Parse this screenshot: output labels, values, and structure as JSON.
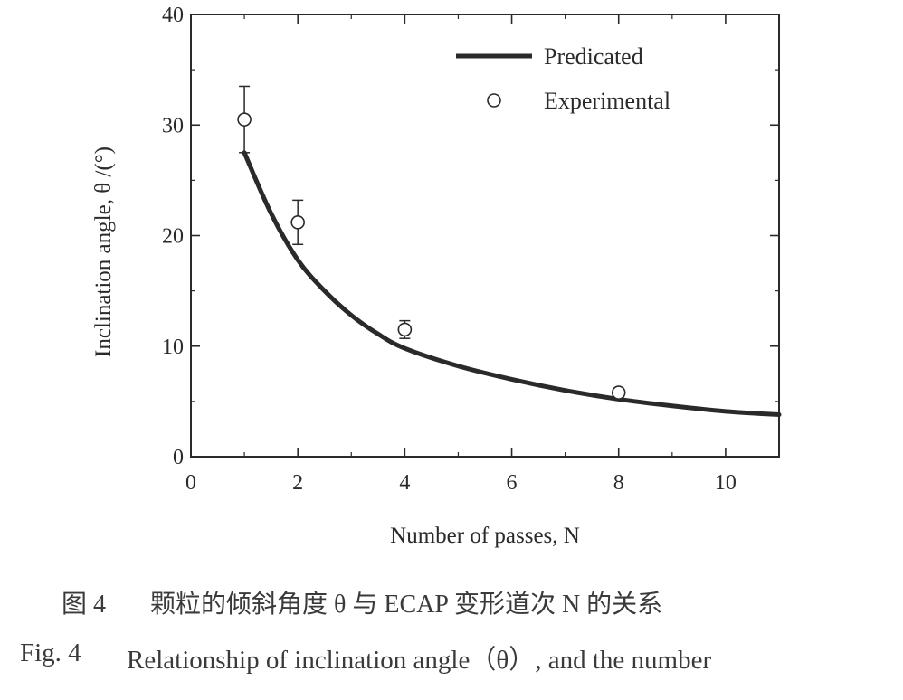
{
  "chart_data": {
    "type": "line",
    "xlabel": "Number of passes, N",
    "ylabel": "Inclination angle,  θ /(°)",
    "xlim": [
      0,
      11
    ],
    "ylim": [
      0,
      40
    ],
    "xticks": [
      "0",
      "2",
      "4",
      "6",
      "8",
      "10"
    ],
    "yticks": [
      "0",
      "10",
      "20",
      "30",
      "40"
    ],
    "grid": false,
    "legend_position": "top-right",
    "series": [
      {
        "name": "Predicated",
        "style": "line",
        "color": "#2a2a2a",
        "x": [
          1,
          1.5,
          2,
          2.5,
          3,
          3.5,
          4,
          5,
          6,
          7,
          8,
          9,
          10,
          11
        ],
        "y": [
          27.5,
          22.0,
          17.8,
          15.0,
          12.8,
          11.1,
          9.8,
          8.2,
          7.0,
          6.0,
          5.2,
          4.6,
          4.1,
          3.8
        ]
      },
      {
        "name": "Experimental",
        "style": "scatter",
        "marker": "open-circle",
        "x": [
          1,
          2,
          4,
          8
        ],
        "y": [
          30.5,
          21.2,
          11.5,
          5.8
        ],
        "y_err": [
          3.0,
          2.0,
          0.8,
          0.4
        ]
      }
    ]
  },
  "caption": {
    "cn_label": "图 4",
    "cn_text": "颗粒的倾斜角度 θ 与 ECAP 变形道次 N 的关系",
    "en_label": "Fig. 4",
    "en_text": "Relationship of inclination angle（θ）, and the number"
  }
}
